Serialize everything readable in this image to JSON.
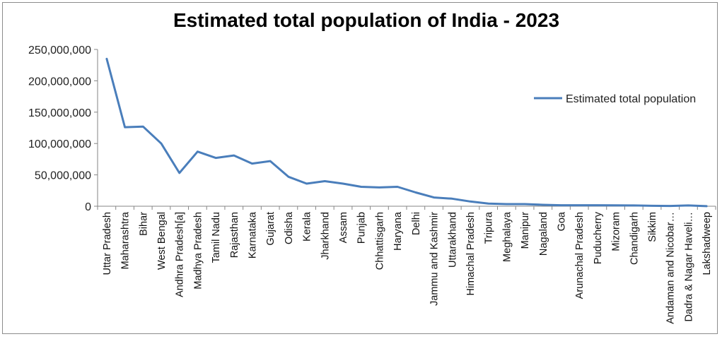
{
  "chart_data": {
    "type": "line",
    "title": "Estimated total population of India - 2023",
    "xlabel": "",
    "ylabel": "",
    "ylim": [
      0,
      250000000
    ],
    "yticks": [
      0,
      50000000,
      100000000,
      150000000,
      200000000,
      250000000
    ],
    "ytick_labels": [
      "0",
      "50,000,000",
      "100,000,000",
      "150,000,000",
      "200,000,000",
      "250,000,000"
    ],
    "grid": false,
    "legend_position": "right",
    "categories": [
      "Uttar Pradesh",
      "Maharashtra",
      "Bihar",
      "West Bengal",
      "Andhra Pradesh[a]",
      "Madhya Pradesh",
      "Tamil Nadu",
      "Rajasthan",
      "Karnataka",
      "Gujarat",
      "Odisha",
      "Kerala",
      "Jharkhand",
      "Assam",
      "Punjab",
      "Chhattisgarh",
      "Haryana",
      "Delhi",
      "Jammu and Kashmir",
      "Uttarakhand",
      "Himachal Pradesh",
      "Tripura",
      "Meghalaya",
      "Manipur",
      "Nagaland",
      "Goa",
      "Arunachal Pradesh",
      "Puducherry",
      "Mizoram",
      "Chandigarh",
      "Sikkim",
      "Andaman and Nicobar…",
      "Dadra & Nagar Haveli…",
      "Lakshadweep"
    ],
    "series": [
      {
        "name": "Estimated total population",
        "color": "#4a7ebb",
        "values": [
          235000000,
          126000000,
          127000000,
          100000000,
          53000000,
          87000000,
          77000000,
          81000000,
          68000000,
          72000000,
          47000000,
          36000000,
          40000000,
          36000000,
          31000000,
          30000000,
          31000000,
          22000000,
          14000000,
          12000000,
          7500000,
          4200000,
          3400000,
          3400000,
          2300000,
          1600000,
          1600000,
          1600000,
          1300000,
          1200000,
          700000,
          500000,
          1200000,
          70000
        ]
      }
    ]
  }
}
